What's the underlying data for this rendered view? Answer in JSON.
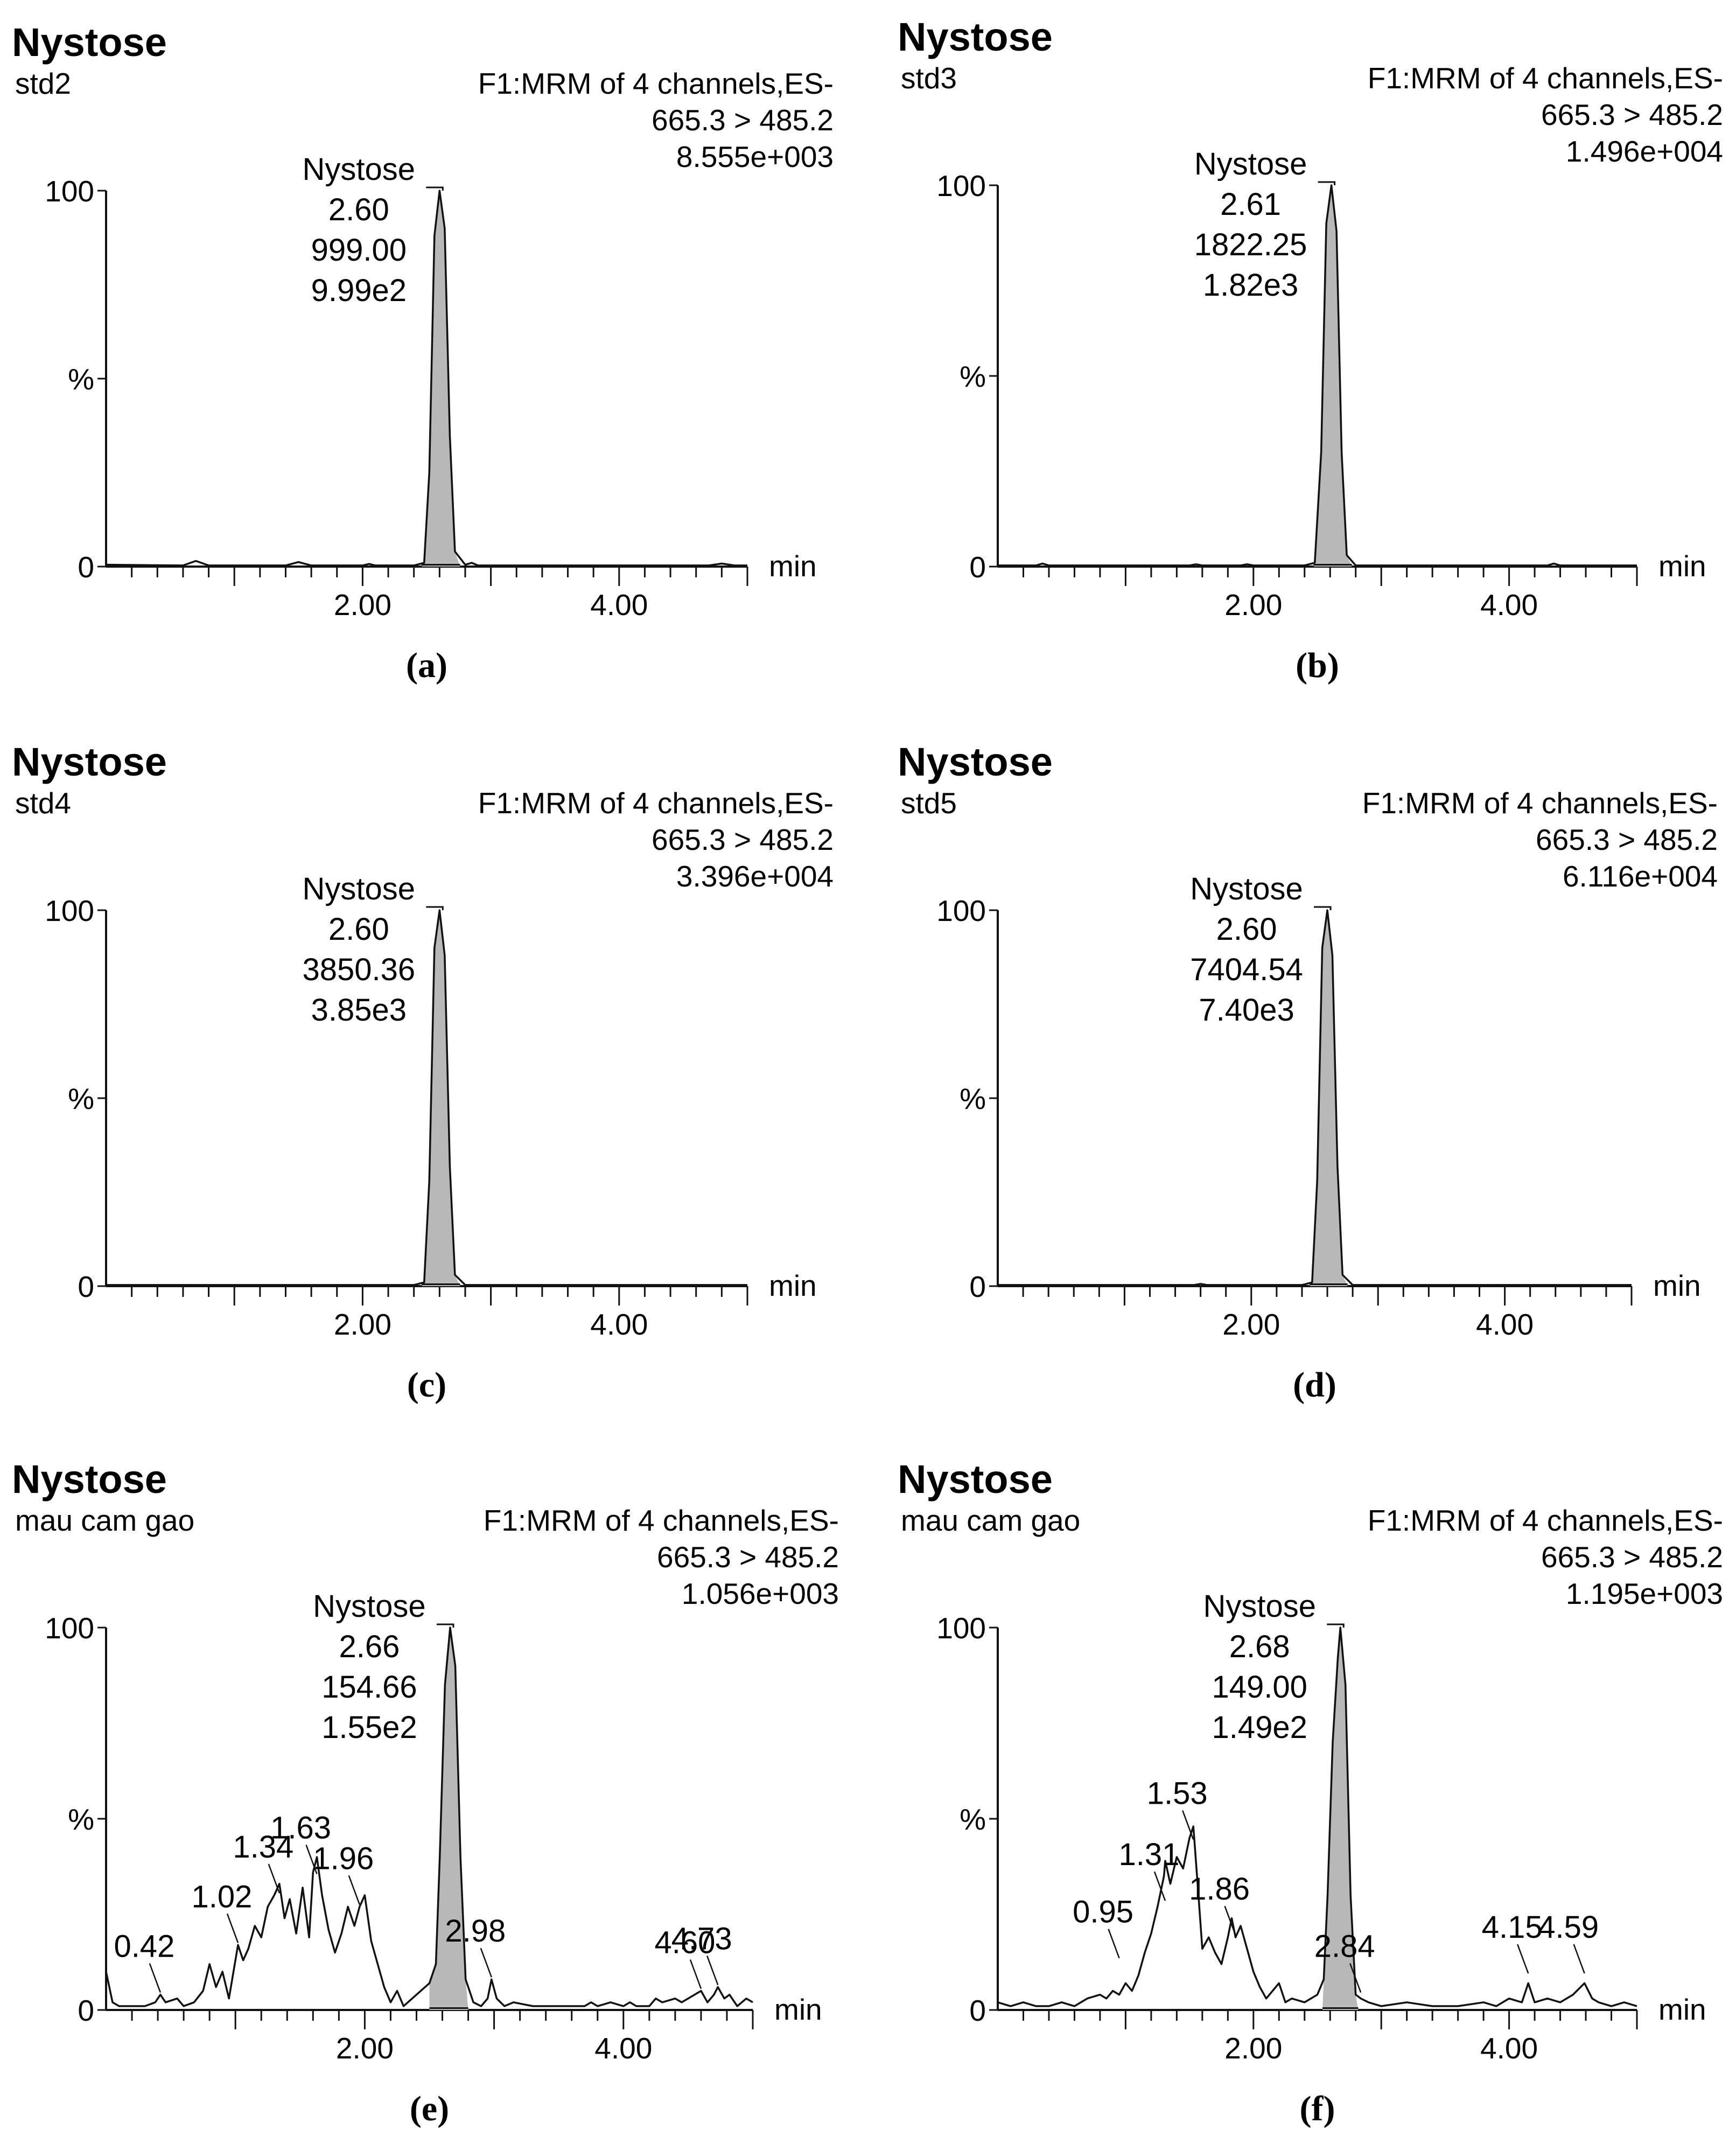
{
  "colors": {
    "axis": "#111111",
    "trace": "#111111",
    "peak_fill": "#b8b8b8",
    "background": "#ffffff"
  },
  "chart_data": [
    {
      "type": "line",
      "panel": "a",
      "caption": "(a)",
      "compound": "Nystose",
      "sample": "std2",
      "function": "F1:MRM of 4 channels,ES-",
      "transition": "665.3 > 485.2",
      "intensity": "8.555e+003",
      "xlabel": "min",
      "ylabel": "%",
      "xlim": [
        0,
        5.0
      ],
      "ylim": [
        0,
        100
      ],
      "x_ticks": [
        "2.00",
        "4.00"
      ],
      "y_ticks": [
        "100",
        "%",
        "0"
      ],
      "peak_label": {
        "name": "Nystose",
        "rt": "2.60",
        "area": "999.00",
        "height": "9.99e2"
      },
      "minor_labels": [],
      "series": [
        {
          "name": "trace",
          "x": [
            0,
            0.6,
            0.7,
            0.8,
            1.4,
            1.5,
            1.6,
            2.0,
            2.05,
            2.1,
            2.4,
            2.48,
            2.52,
            2.56,
            2.6,
            2.64,
            2.68,
            2.72,
            2.8,
            2.85,
            2.9,
            3.0,
            4.7,
            4.8,
            4.9,
            5.0
          ],
          "values": [
            0.5,
            0.3,
            1.5,
            0.3,
            0.3,
            1.2,
            0.3,
            0.3,
            0.7,
            0.3,
            0.3,
            1,
            25,
            88,
            100,
            90,
            35,
            4,
            0.5,
            1,
            0.3,
            0.3,
            0.3,
            0.8,
            0.3,
            0.3
          ]
        }
      ],
      "peak_range": [
        2.46,
        2.76
      ]
    },
    {
      "type": "line",
      "panel": "b",
      "caption": "(b)",
      "compound": "Nystose",
      "sample": "std3",
      "function": "F1:MRM of 4 channels,ES-",
      "transition": "665.3 > 485.2",
      "intensity": "1.496e+004",
      "xlabel": "min",
      "ylabel": "%",
      "xlim": [
        0,
        5.0
      ],
      "ylim": [
        0,
        100
      ],
      "x_ticks": [
        "2.00",
        "4.00"
      ],
      "y_ticks": [
        "100",
        "%",
        "0"
      ],
      "peak_label": {
        "name": "Nystose",
        "rt": "2.61",
        "area": "1822.25",
        "height": "1.82e3"
      },
      "minor_labels": [],
      "series": [
        {
          "name": "trace",
          "x": [
            0,
            0.3,
            0.35,
            0.4,
            1.5,
            1.55,
            1.6,
            1.9,
            1.95,
            2.0,
            2.4,
            2.48,
            2.53,
            2.57,
            2.61,
            2.65,
            2.69,
            2.73,
            2.8,
            4.3,
            4.35,
            4.4,
            5.0
          ],
          "values": [
            0.3,
            0.3,
            0.8,
            0.3,
            0.3,
            0.6,
            0.3,
            0.3,
            0.6,
            0.3,
            0.3,
            1,
            30,
            90,
            100,
            88,
            30,
            3,
            0.3,
            0.3,
            0.8,
            0.3,
            0.3
          ]
        }
      ],
      "peak_range": [
        2.47,
        2.77
      ]
    },
    {
      "type": "line",
      "panel": "c",
      "caption": "(c)",
      "compound": "Nystose",
      "sample": "std4",
      "function": "F1:MRM of 4 channels,ES-",
      "transition": "665.3 > 485.2",
      "intensity": "3.396e+004",
      "xlabel": "min",
      "ylabel": "%",
      "xlim": [
        0,
        5.0
      ],
      "ylim": [
        0,
        100
      ],
      "x_ticks": [
        "2.00",
        "4.00"
      ],
      "y_ticks": [
        "100",
        "%",
        "0"
      ],
      "peak_label": {
        "name": "Nystose",
        "rt": "2.60",
        "area": "3850.36",
        "height": "3.85e3"
      },
      "minor_labels": [],
      "series": [
        {
          "name": "trace",
          "x": [
            0,
            2.4,
            2.48,
            2.52,
            2.56,
            2.6,
            2.64,
            2.68,
            2.72,
            2.8,
            5.0
          ],
          "values": [
            0.3,
            0.3,
            1,
            28,
            90,
            100,
            88,
            32,
            3,
            0.3,
            0.3
          ]
        }
      ],
      "peak_range": [
        2.46,
        2.76
      ]
    },
    {
      "type": "line",
      "panel": "d",
      "caption": "(d)",
      "compound": "Nystose",
      "sample": "std5",
      "function": "F1:MRM of 4 channels,ES-",
      "transition": "665.3 > 485.2",
      "intensity": "6.116e+004",
      "xlabel": "min",
      "ylabel": "%",
      "xlim": [
        0,
        5.0
      ],
      "ylim": [
        0,
        100
      ],
      "x_ticks": [
        "2.00",
        "4.00"
      ],
      "y_ticks": [
        "100",
        "%",
        "0"
      ],
      "peak_label": {
        "name": "Nystose",
        "rt": "2.60",
        "area": "7404.54",
        "height": "7.40e3"
      },
      "minor_labels": [],
      "series": [
        {
          "name": "trace",
          "x": [
            0,
            1.55,
            1.6,
            1.65,
            2.4,
            2.48,
            2.52,
            2.56,
            2.6,
            2.64,
            2.68,
            2.72,
            2.8,
            5.0
          ],
          "values": [
            0.3,
            0.3,
            0.6,
            0.3,
            0.3,
            1,
            28,
            90,
            100,
            88,
            32,
            3,
            0.3,
            0.3
          ]
        }
      ],
      "peak_range": [
        2.46,
        2.76
      ]
    },
    {
      "type": "line",
      "panel": "e",
      "caption": "(e)",
      "compound": "Nystose",
      "sample": "mau cam gao",
      "function": "F1:MRM of 4 channels,ES-",
      "transition": "665.3 > 485.2",
      "intensity": "1.056e+003",
      "xlabel": "min",
      "ylabel": "%",
      "xlim": [
        0,
        5.0
      ],
      "ylim": [
        0,
        100
      ],
      "x_ticks": [
        "2.00",
        "4.00"
      ],
      "y_ticks": [
        "100",
        "%",
        "0"
      ],
      "peak_label": {
        "name": "Nystose",
        "rt": "2.66",
        "area": "154.66",
        "height": "1.55e2"
      },
      "minor_labels": [
        {
          "text": "0.42",
          "x": 0.42,
          "y": 4
        },
        {
          "text": "1.02",
          "x": 1.02,
          "y": 17
        },
        {
          "text": "1.34",
          "x": 1.34,
          "y": 30
        },
        {
          "text": "1.63",
          "x": 1.63,
          "y": 35
        },
        {
          "text": "1.96",
          "x": 1.96,
          "y": 27
        },
        {
          "text": "2.98",
          "x": 2.98,
          "y": 8
        },
        {
          "text": "4.60",
          "x": 4.6,
          "y": 5
        },
        {
          "text": "4.73",
          "x": 4.73,
          "y": 6
        }
      ],
      "series": [
        {
          "name": "trace",
          "x": [
            0,
            0.05,
            0.1,
            0.2,
            0.3,
            0.38,
            0.42,
            0.46,
            0.55,
            0.6,
            0.68,
            0.75,
            0.8,
            0.85,
            0.9,
            0.95,
            1.0,
            1.02,
            1.06,
            1.1,
            1.15,
            1.2,
            1.25,
            1.3,
            1.34,
            1.38,
            1.42,
            1.47,
            1.52,
            1.57,
            1.6,
            1.63,
            1.67,
            1.72,
            1.77,
            1.82,
            1.87,
            1.92,
            1.96,
            2.0,
            2.05,
            2.1,
            2.15,
            2.2,
            2.25,
            2.3,
            2.4,
            2.5,
            2.55,
            2.58,
            2.62,
            2.66,
            2.7,
            2.74,
            2.78,
            2.84,
            2.9,
            2.95,
            2.98,
            3.02,
            3.08,
            3.15,
            3.3,
            3.5,
            3.7,
            3.75,
            3.8,
            3.9,
            4.0,
            4.05,
            4.1,
            4.2,
            4.25,
            4.3,
            4.4,
            4.45,
            4.5,
            4.55,
            4.6,
            4.65,
            4.7,
            4.73,
            4.78,
            4.82,
            4.88,
            4.95,
            5.0
          ],
          "values": [
            10,
            2,
            1,
            1,
            1,
            2,
            4,
            2,
            3,
            1,
            2,
            5,
            12,
            6,
            10,
            3,
            13,
            17,
            13,
            16,
            22,
            19,
            27,
            30,
            33,
            24,
            29,
            20,
            32,
            19,
            36,
            40,
            30,
            21,
            15,
            20,
            27,
            22,
            27,
            30,
            18,
            12,
            6,
            2,
            5,
            1,
            4,
            7,
            12,
            40,
            85,
            100,
            90,
            40,
            8,
            2,
            1,
            3,
            8,
            3,
            1,
            2,
            1,
            1,
            1,
            2,
            1,
            2,
            1,
            2,
            1,
            1,
            3,
            2,
            3,
            2,
            3,
            4,
            5,
            2,
            4,
            6,
            3,
            4,
            1,
            3,
            2
          ]
        }
      ],
      "peak_range": [
        2.5,
        2.8
      ]
    },
    {
      "type": "line",
      "panel": "f",
      "caption": "(f)",
      "compound": "Nystose",
      "sample": "mau cam gao",
      "function": "F1:MRM of 4 channels,ES-",
      "transition": "665.3 > 485.2",
      "intensity": "1.195e+003",
      "xlabel": "min",
      "ylabel": "%",
      "xlim": [
        0,
        5.0
      ],
      "ylim": [
        0,
        100
      ],
      "x_ticks": [
        "2.00",
        "4.00"
      ],
      "y_ticks": [
        "100",
        "%",
        "0"
      ],
      "peak_label": {
        "name": "Nystose",
        "rt": "2.68",
        "area": "149.00",
        "height": "1.49e2"
      },
      "minor_labels": [
        {
          "text": "0.95",
          "x": 0.95,
          "y": 13
        },
        {
          "text": "1.31",
          "x": 1.31,
          "y": 28
        },
        {
          "text": "1.53",
          "x": 1.53,
          "y": 44
        },
        {
          "text": "1.86",
          "x": 1.86,
          "y": 19
        },
        {
          "text": "2.84",
          "x": 2.84,
          "y": 4
        },
        {
          "text": "4.15",
          "x": 4.15,
          "y": 9
        },
        {
          "text": "4.59",
          "x": 4.59,
          "y": 9
        }
      ],
      "series": [
        {
          "name": "trace",
          "x": [
            0,
            0.1,
            0.2,
            0.3,
            0.4,
            0.5,
            0.6,
            0.7,
            0.8,
            0.85,
            0.9,
            0.95,
            1.0,
            1.05,
            1.1,
            1.15,
            1.2,
            1.25,
            1.3,
            1.31,
            1.35,
            1.4,
            1.45,
            1.5,
            1.53,
            1.57,
            1.6,
            1.65,
            1.7,
            1.75,
            1.8,
            1.83,
            1.86,
            1.9,
            1.95,
            2.0,
            2.05,
            2.1,
            2.2,
            2.25,
            2.3,
            2.4,
            2.5,
            2.55,
            2.58,
            2.62,
            2.66,
            2.68,
            2.72,
            2.76,
            2.8,
            2.84,
            2.9,
            3.0,
            3.2,
            3.4,
            3.6,
            3.8,
            3.9,
            4.0,
            4.1,
            4.15,
            4.2,
            4.3,
            4.4,
            4.5,
            4.59,
            4.65,
            4.7,
            4.8,
            4.9,
            5.0
          ],
          "values": [
            2,
            1,
            2,
            1,
            1,
            2,
            1,
            3,
            4,
            3,
            5,
            4,
            7,
            5,
            9,
            15,
            20,
            27,
            35,
            39,
            33,
            40,
            37,
            45,
            48,
            30,
            16,
            19,
            15,
            12,
            19,
            24,
            19,
            22,
            16,
            10,
            6,
            3,
            7,
            2,
            3,
            2,
            4,
            8,
            30,
            70,
            92,
            100,
            85,
            30,
            4,
            3,
            2,
            1,
            2,
            1,
            1,
            2,
            1,
            3,
            2,
            7,
            2,
            3,
            2,
            4,
            7,
            3,
            2,
            1,
            2,
            1
          ]
        }
      ],
      "peak_range": [
        2.54,
        2.82
      ]
    }
  ]
}
